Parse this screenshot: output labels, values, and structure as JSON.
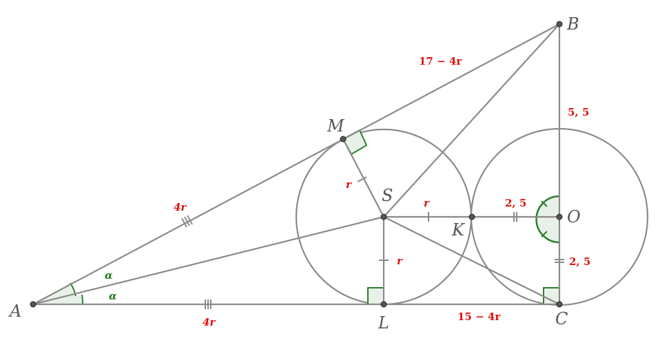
{
  "points": {
    "A": "A",
    "B": "B",
    "C": "C",
    "M": "M",
    "S": "S",
    "K": "K",
    "O": "O",
    "L": "L"
  },
  "measures": {
    "AM": "4r",
    "AL": "4r",
    "MB": "17 − 4r",
    "LC": "15 − 4r",
    "BO": "5, 5",
    "KO": "2, 5",
    "OC": "2, 5",
    "SM": "r",
    "SK": "r",
    "SL": "r"
  },
  "angles": {
    "upper": "α",
    "lower": "α"
  },
  "colors": {
    "line": "#8a8a8a",
    "circle": "#8a8a8a",
    "measure": "#e01010",
    "angle": "#1a7a1a",
    "angle_fill": "#e8f1e8",
    "point": "#555555"
  }
}
